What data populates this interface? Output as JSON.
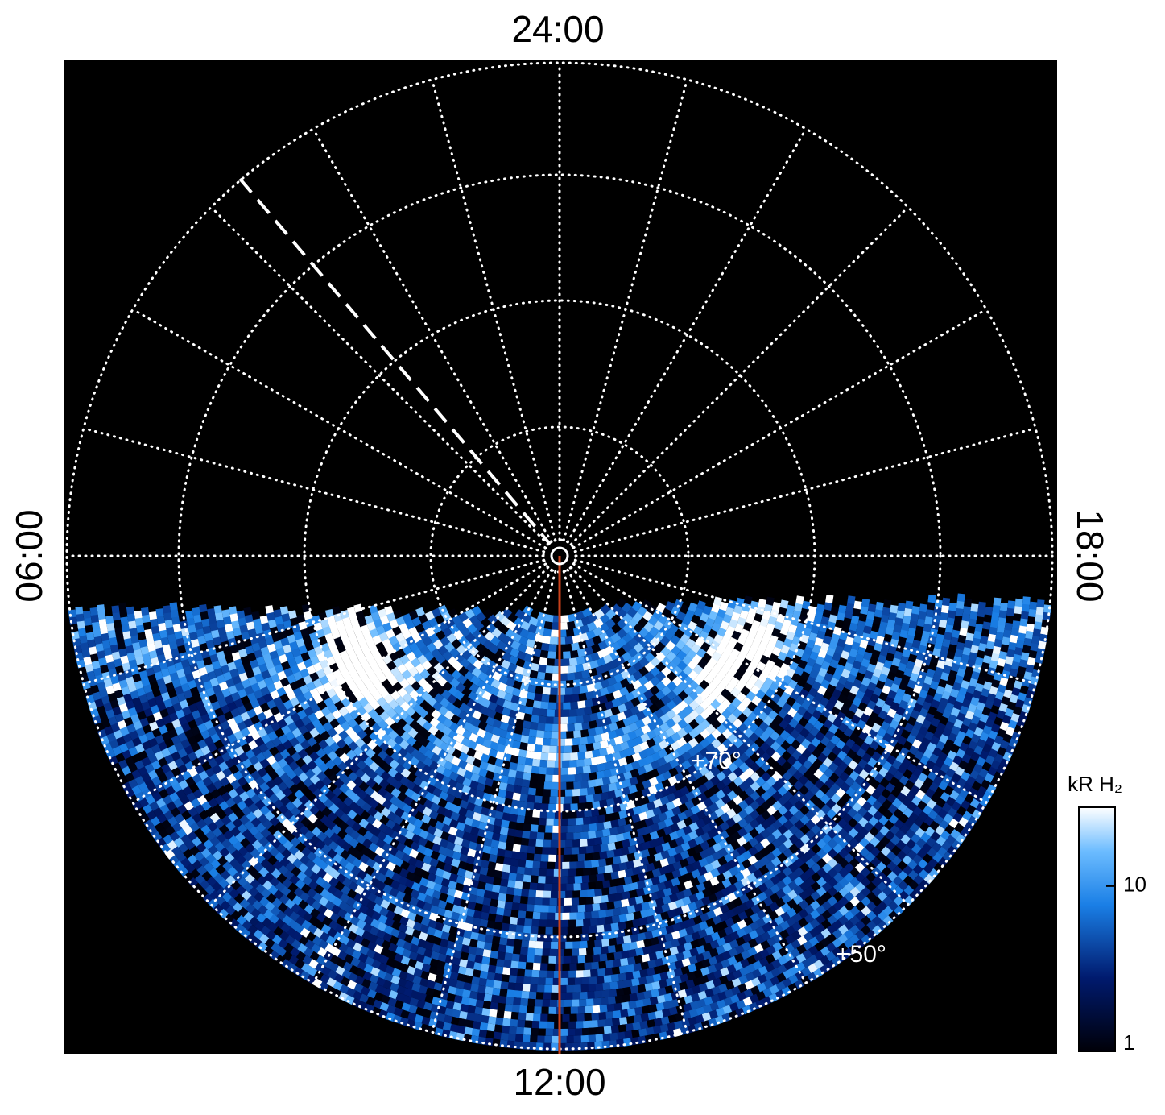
{
  "chart_data": {
    "type": "polar-map",
    "hour_labels": {
      "top": "24:00",
      "bottom": "12:00",
      "left": "06:00",
      "right": "18:00"
    },
    "latitude_labels": [
      "+70°",
      "+50°"
    ],
    "colorbar": {
      "label": "kR H₂",
      "scale": "log",
      "lim": [
        1,
        30
      ],
      "ticks": [
        1,
        10
      ]
    }
  }
}
